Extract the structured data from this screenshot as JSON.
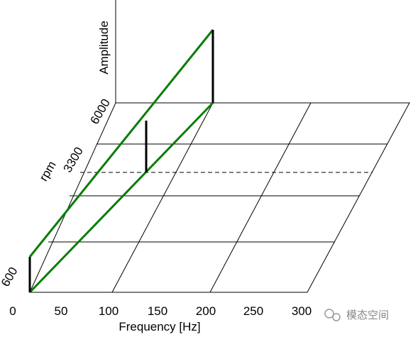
{
  "x_axis": {
    "label": "Frequency [Hz]",
    "ticks": [
      "0",
      "50",
      "100",
      "150",
      "200",
      "250",
      "300"
    ]
  },
  "y_axis": {
    "label": "rpm",
    "ticks": [
      "600",
      "3300",
      "6000"
    ]
  },
  "z_axis": {
    "label": "Amplitude"
  },
  "watermark": "模态空间"
}
